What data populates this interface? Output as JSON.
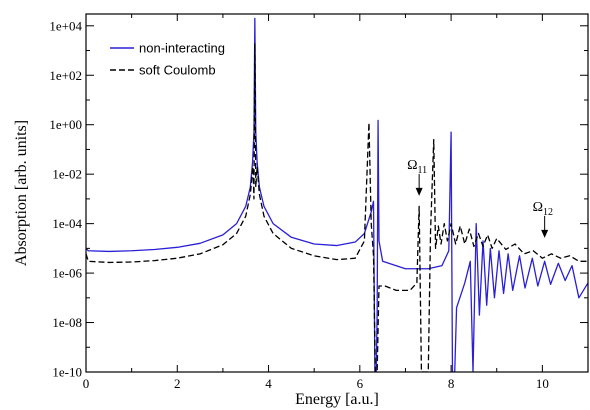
{
  "chart_data": {
    "type": "line",
    "xlabel": "Energy [a.u.]",
    "ylabel": "Absorption [arb. units]",
    "xlim": [
      0,
      11
    ],
    "ylim": [
      1e-10,
      30000.0
    ],
    "log_y": true,
    "x_ticks": [
      0,
      2,
      4,
      6,
      8,
      10
    ],
    "x_tick_labels": [
      "0",
      "2",
      "4",
      "6",
      "8",
      "10"
    ],
    "y_ticks": [
      1e-10,
      1e-08,
      1e-06,
      0.0001,
      0.01,
      1,
      100,
      10000
    ],
    "y_tick_labels": [
      "1e-10",
      "1e-08",
      "1e-06",
      "1e-04",
      "1e-02",
      "1e+00",
      "1e+02",
      "1e+04"
    ],
    "legend_position": "top-left",
    "grid": false,
    "series": [
      {
        "name": "non-interacting",
        "color": "#2a1fd6",
        "dash": "solid",
        "points": [
          [
            0.0,
            1e-05
          ],
          [
            0.05,
            8e-06
          ],
          [
            0.5,
            7.5e-06
          ],
          [
            1.0,
            8e-06
          ],
          [
            1.5,
            9e-06
          ],
          [
            2.0,
            1.1e-05
          ],
          [
            2.5,
            1.6e-05
          ],
          [
            3.0,
            3.5e-05
          ],
          [
            3.3,
            0.0001
          ],
          [
            3.5,
            0.0005
          ],
          [
            3.6,
            0.003
          ],
          [
            3.65,
            0.03
          ],
          [
            3.68,
            0.5
          ],
          [
            3.7,
            20000
          ],
          [
            3.72,
            0.5
          ],
          [
            3.75,
            0.03
          ],
          [
            3.8,
            0.003
          ],
          [
            3.9,
            0.0005
          ],
          [
            4.1,
            0.0001
          ],
          [
            4.5,
            2.8e-05
          ],
          [
            5.0,
            1.5e-05
          ],
          [
            5.5,
            1.3e-05
          ],
          [
            5.9,
            1.8e-05
          ],
          [
            6.1,
            4e-05
          ],
          [
            6.25,
            0.0003
          ],
          [
            6.3,
            0.0008
          ],
          [
            6.33,
            1e-10
          ],
          [
            6.36,
            1e-10
          ],
          [
            6.38,
            3e-08
          ],
          [
            6.4,
            1.5
          ],
          [
            6.42,
            2e-05
          ],
          [
            6.5,
            3e-06
          ],
          [
            7.0,
            1.5e-06
          ],
          [
            7.5,
            1.5e-06
          ],
          [
            7.8,
            2e-06
          ],
          [
            7.95,
            8e-06
          ],
          [
            8.0,
            0.5
          ],
          [
            8.03,
            1e-10
          ],
          [
            8.08,
            1e-10
          ],
          [
            8.12,
            4e-08
          ],
          [
            8.3,
            4e-07
          ],
          [
            8.42,
            3e-06
          ],
          [
            8.48,
            1e-10
          ],
          [
            8.55,
            0.0001
          ],
          [
            8.62,
            2e-08
          ],
          [
            8.7,
            2e-05
          ],
          [
            8.78,
            5e-08
          ],
          [
            8.86,
            1e-05
          ],
          [
            8.95,
            1e-07
          ],
          [
            9.05,
            8e-06
          ],
          [
            9.15,
            1.5e-07
          ],
          [
            9.25,
            6e-06
          ],
          [
            9.35,
            2e-07
          ],
          [
            9.5,
            5e-06
          ],
          [
            9.62,
            2.5e-07
          ],
          [
            9.78,
            4e-06
          ],
          [
            9.9,
            3e-07
          ],
          [
            10.05,
            3e-06
          ],
          [
            10.18,
            3.5e-07
          ],
          [
            10.35,
            2.5e-06
          ],
          [
            10.5,
            5e-07
          ],
          [
            10.65,
            2e-06
          ],
          [
            10.8,
            1e-07
          ],
          [
            11.0,
            4e-07
          ]
        ]
      },
      {
        "name": "soft Coulomb",
        "color": "#000000",
        "dash": "dashed",
        "points": [
          [
            0.0,
            6e-06
          ],
          [
            0.05,
            3e-06
          ],
          [
            0.5,
            2.7e-06
          ],
          [
            1.0,
            2.8e-06
          ],
          [
            1.5,
            3.2e-06
          ],
          [
            2.0,
            4e-06
          ],
          [
            2.5,
            6e-06
          ],
          [
            3.0,
            1.4e-05
          ],
          [
            3.3,
            4e-05
          ],
          [
            3.5,
            0.0002
          ],
          [
            3.6,
            0.0015
          ],
          [
            3.66,
            0.02
          ],
          [
            3.68,
            0.001
          ],
          [
            3.7,
            2000
          ],
          [
            3.72,
            0.003
          ],
          [
            3.75,
            0.02
          ],
          [
            3.8,
            0.0015
          ],
          [
            3.9,
            0.0002
          ],
          [
            4.1,
            4e-05
          ],
          [
            4.5,
            1e-05
          ],
          [
            5.0,
            5e-06
          ],
          [
            5.5,
            3.5e-06
          ],
          [
            5.9,
            4e-06
          ],
          [
            6.1,
            2e-05
          ],
          [
            6.2,
            1.2
          ],
          [
            6.25,
            0.0001
          ],
          [
            6.3,
            5e-06
          ],
          [
            6.34,
            1e-10
          ],
          [
            6.38,
            1e-10
          ],
          [
            6.42,
            3e-07
          ],
          [
            6.55,
            3e-07
          ],
          [
            6.8,
            2e-07
          ],
          [
            7.1,
            2e-07
          ],
          [
            7.25,
            4e-07
          ],
          [
            7.3,
            0.0005
          ],
          [
            7.35,
            1e-10
          ],
          [
            7.5,
            1e-10
          ],
          [
            7.55,
            5e-05
          ],
          [
            7.62,
            0.25
          ],
          [
            7.66,
            1e-05
          ],
          [
            7.72,
            8e-05
          ],
          [
            7.78,
            1.5e-05
          ],
          [
            7.85,
            0.0001
          ],
          [
            7.92,
            2e-05
          ],
          [
            8.0,
            0.0001
          ],
          [
            8.1,
            1.5e-05
          ],
          [
            8.2,
            8e-05
          ],
          [
            8.3,
            1.5e-05
          ],
          [
            8.4,
            6e-05
          ],
          [
            8.5,
            1.2e-05
          ],
          [
            8.6,
            4e-05
          ],
          [
            8.7,
            1.2e-05
          ],
          [
            8.8,
            3.5e-05
          ],
          [
            8.9,
            1e-05
          ],
          [
            9.0,
            2.5e-05
          ],
          [
            9.2,
            9e-06
          ],
          [
            9.4,
            1.5e-05
          ],
          [
            9.6,
            6e-06
          ],
          [
            9.8,
            8e-06
          ],
          [
            10.0,
            4e-06
          ],
          [
            10.2,
            6e-06
          ],
          [
            10.4,
            4e-06
          ],
          [
            10.6,
            5e-06
          ],
          [
            10.8,
            3e-06
          ],
          [
            11.0,
            3e-06
          ]
        ]
      }
    ],
    "annotations": [
      {
        "label": "Ω",
        "sub": "11",
        "x": 7.3,
        "y": 0.001
      },
      {
        "label": "Ω",
        "sub": "12",
        "x": 10.05,
        "y": 2e-05
      }
    ]
  }
}
